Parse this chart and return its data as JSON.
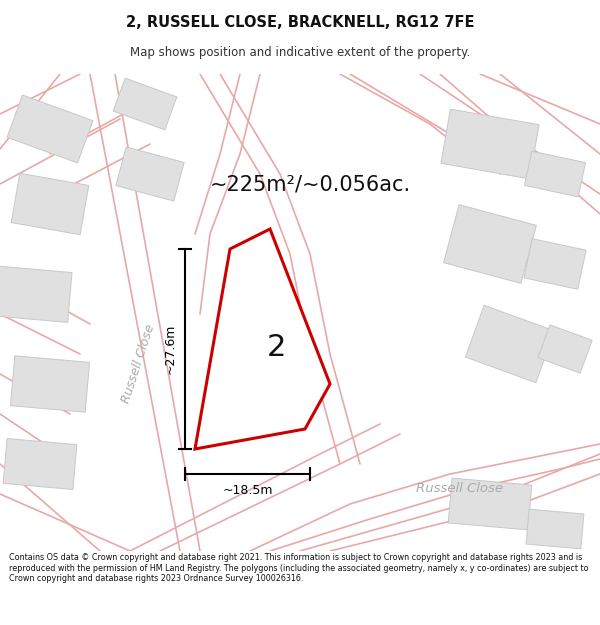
{
  "title": "2, RUSSELL CLOSE, BRACKNELL, RG12 7FE",
  "subtitle": "Map shows position and indicative extent of the property.",
  "area_text": "~225m²/~0.056ac.",
  "dim_width": "~18.5m",
  "dim_height": "~27.6m",
  "plot_number": "2",
  "street_label_diag": "Russell Close",
  "street_label_horiz": "Russell Close",
  "footer": "Contains OS data © Crown copyright and database right 2021. This information is subject to Crown copyright and database rights 2023 and is reproduced with the permission of HM Land Registry. The polygons (including the associated geometry, namely x, y co-ordinates) are subject to Crown copyright and database rights 2023 Ordnance Survey 100026316.",
  "bg_color": "#ffffff",
  "map_bg": "#ffffff",
  "plot_fill": "#ffffff",
  "plot_edge": "#cc0000",
  "road_color": "#e8a8a8",
  "building_color": "#e0e0e0",
  "building_edge": "#c8c8c8",
  "dim_color": "#000000",
  "label_color": "#aaaaaa",
  "title_color": "#111111",
  "footer_color": "#111111"
}
